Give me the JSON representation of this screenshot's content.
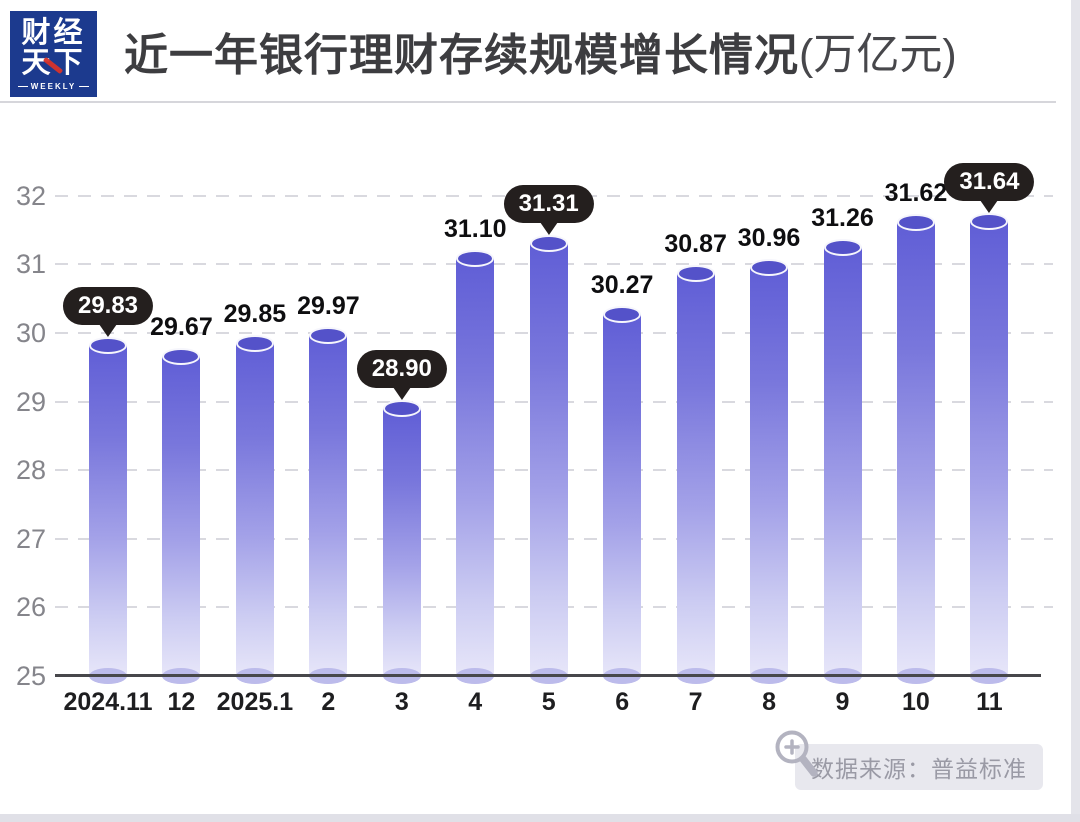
{
  "header": {
    "logo": {
      "line1": "财经",
      "line2": "天下",
      "weekly": "WEEKLY"
    },
    "title_main": "近一年银行理财存续规模增长情况",
    "title_unit": "(万亿元)"
  },
  "chart_data": {
    "type": "bar",
    "title": "近一年银行理财存续规模增长情况(万亿元)",
    "xlabel": "",
    "ylabel": "",
    "categories": [
      "2024.11",
      "12",
      "2025.1",
      "2",
      "3",
      "4",
      "5",
      "6",
      "7",
      "8",
      "9",
      "10",
      "11"
    ],
    "values": [
      29.83,
      29.67,
      29.85,
      29.97,
      28.9,
      31.1,
      31.31,
      30.27,
      30.87,
      30.96,
      31.26,
      31.62,
      31.64
    ],
    "display_values": [
      "29.83",
      "29.67",
      "29.85",
      "29.97",
      "28.90",
      "31.10",
      "31.31",
      "30.27",
      "30.87",
      "30.96",
      "31.26",
      "31.62",
      "31.64"
    ],
    "callouts": [
      true,
      false,
      false,
      false,
      true,
      false,
      true,
      false,
      false,
      false,
      false,
      false,
      true
    ],
    "ylim": [
      25,
      32
    ],
    "yticks": [
      25,
      26,
      27,
      28,
      29,
      30,
      31,
      32
    ],
    "grid": "horizontal-dashed",
    "legend": "none",
    "bar_style": "3d-cylinder-gradient",
    "colors": {
      "bar_top": "#5452c9",
      "bar_gradient_start": "#605ed6",
      "bar_gradient_end": "#e7e6f9",
      "callout_bg": "#241f1e",
      "callout_text": "#ffffff",
      "axis": "#47474b",
      "gridline": "#d9d9df",
      "y_tick_text": "#85858b",
      "x_tick_text": "#1e1e20",
      "logo_bg": "#1c3a8e",
      "title_text": "#3d3d40"
    }
  },
  "footer": {
    "source_label": "数据来源：普益标准",
    "zoom_icon": "magnifier-plus-icon"
  }
}
